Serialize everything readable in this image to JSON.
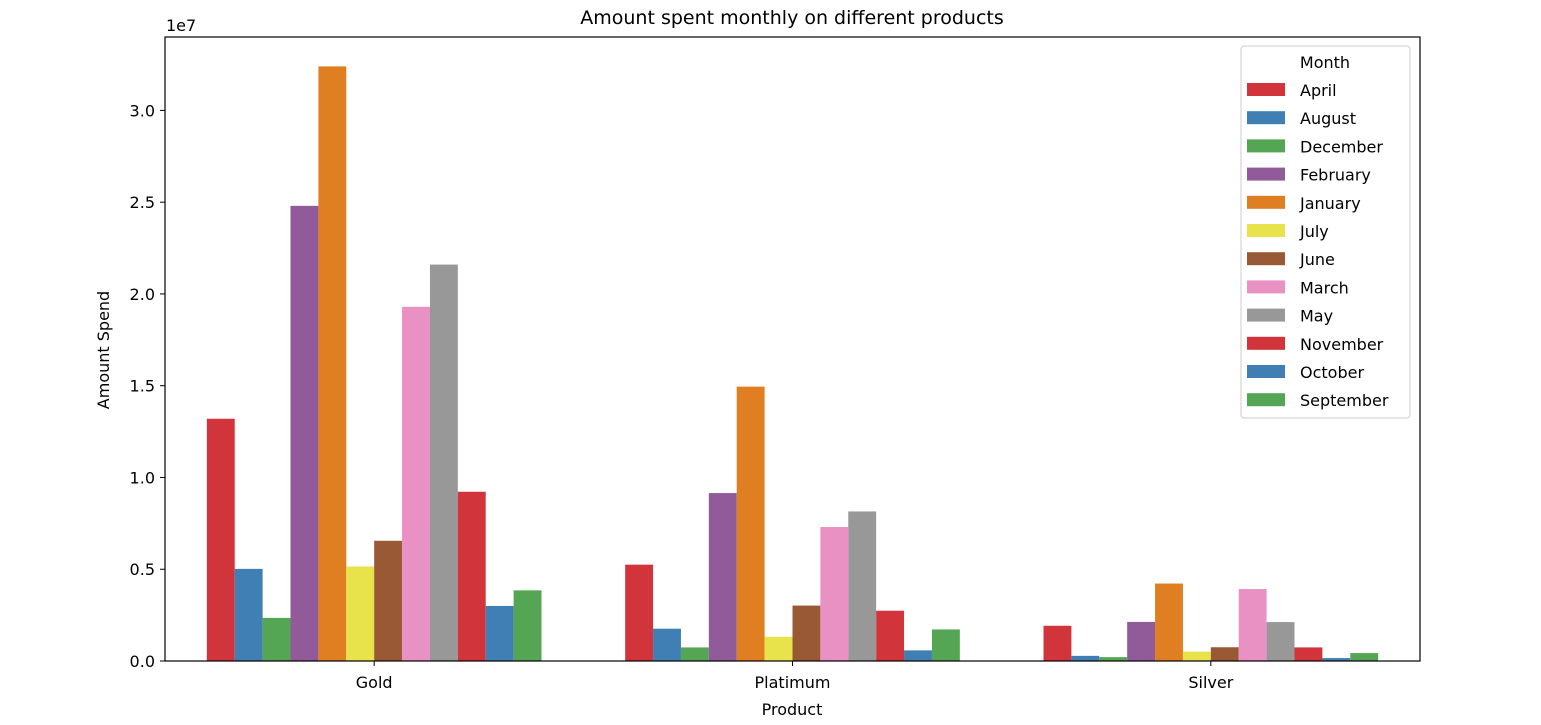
{
  "chart_data": {
    "type": "bar",
    "title": "Amount spent monthly on different products",
    "xlabel": "Product",
    "ylabel": "Amount Spend",
    "y_offset_text": "1e7",
    "ylim": [
      0,
      34000000
    ],
    "yticks": [
      0,
      5000000,
      10000000,
      15000000,
      20000000,
      25000000,
      30000000
    ],
    "ytick_labels": [
      "0.0",
      "0.5",
      "1.0",
      "1.5",
      "2.0",
      "2.5",
      "3.0"
    ],
    "categories": [
      "Gold",
      "Platimum",
      "Silver"
    ],
    "legend_title": "Month",
    "legend_position": "top-right",
    "grid": false,
    "series": [
      {
        "name": "April",
        "color": "#d1343a",
        "values": [
          13200000,
          5250000,
          1920000
        ]
      },
      {
        "name": "August",
        "color": "#3f7fb3",
        "values": [
          5020000,
          1760000,
          280000
        ]
      },
      {
        "name": "December",
        "color": "#54a554",
        "values": [
          2350000,
          740000,
          210000
        ]
      },
      {
        "name": "February",
        "color": "#915a98",
        "values": [
          24800000,
          9150000,
          2130000
        ]
      },
      {
        "name": "January",
        "color": "#e07f22",
        "values": [
          32400000,
          14950000,
          4220000
        ]
      },
      {
        "name": "July",
        "color": "#e9e34b",
        "values": [
          5150000,
          1320000,
          510000
        ]
      },
      {
        "name": "June",
        "color": "#9a5935",
        "values": [
          6550000,
          3020000,
          750000
        ]
      },
      {
        "name": "March",
        "color": "#e891c2",
        "values": [
          19300000,
          7300000,
          3920000
        ]
      },
      {
        "name": "May",
        "color": "#989898",
        "values": [
          21600000,
          8150000,
          2120000
        ]
      },
      {
        "name": "November",
        "color": "#d1343a",
        "values": [
          9220000,
          2740000,
          740000
        ]
      },
      {
        "name": "October",
        "color": "#3f7fb3",
        "values": [
          3000000,
          580000,
          160000
        ]
      },
      {
        "name": "September",
        "color": "#54a554",
        "values": [
          3850000,
          1720000,
          430000
        ]
      }
    ]
  }
}
